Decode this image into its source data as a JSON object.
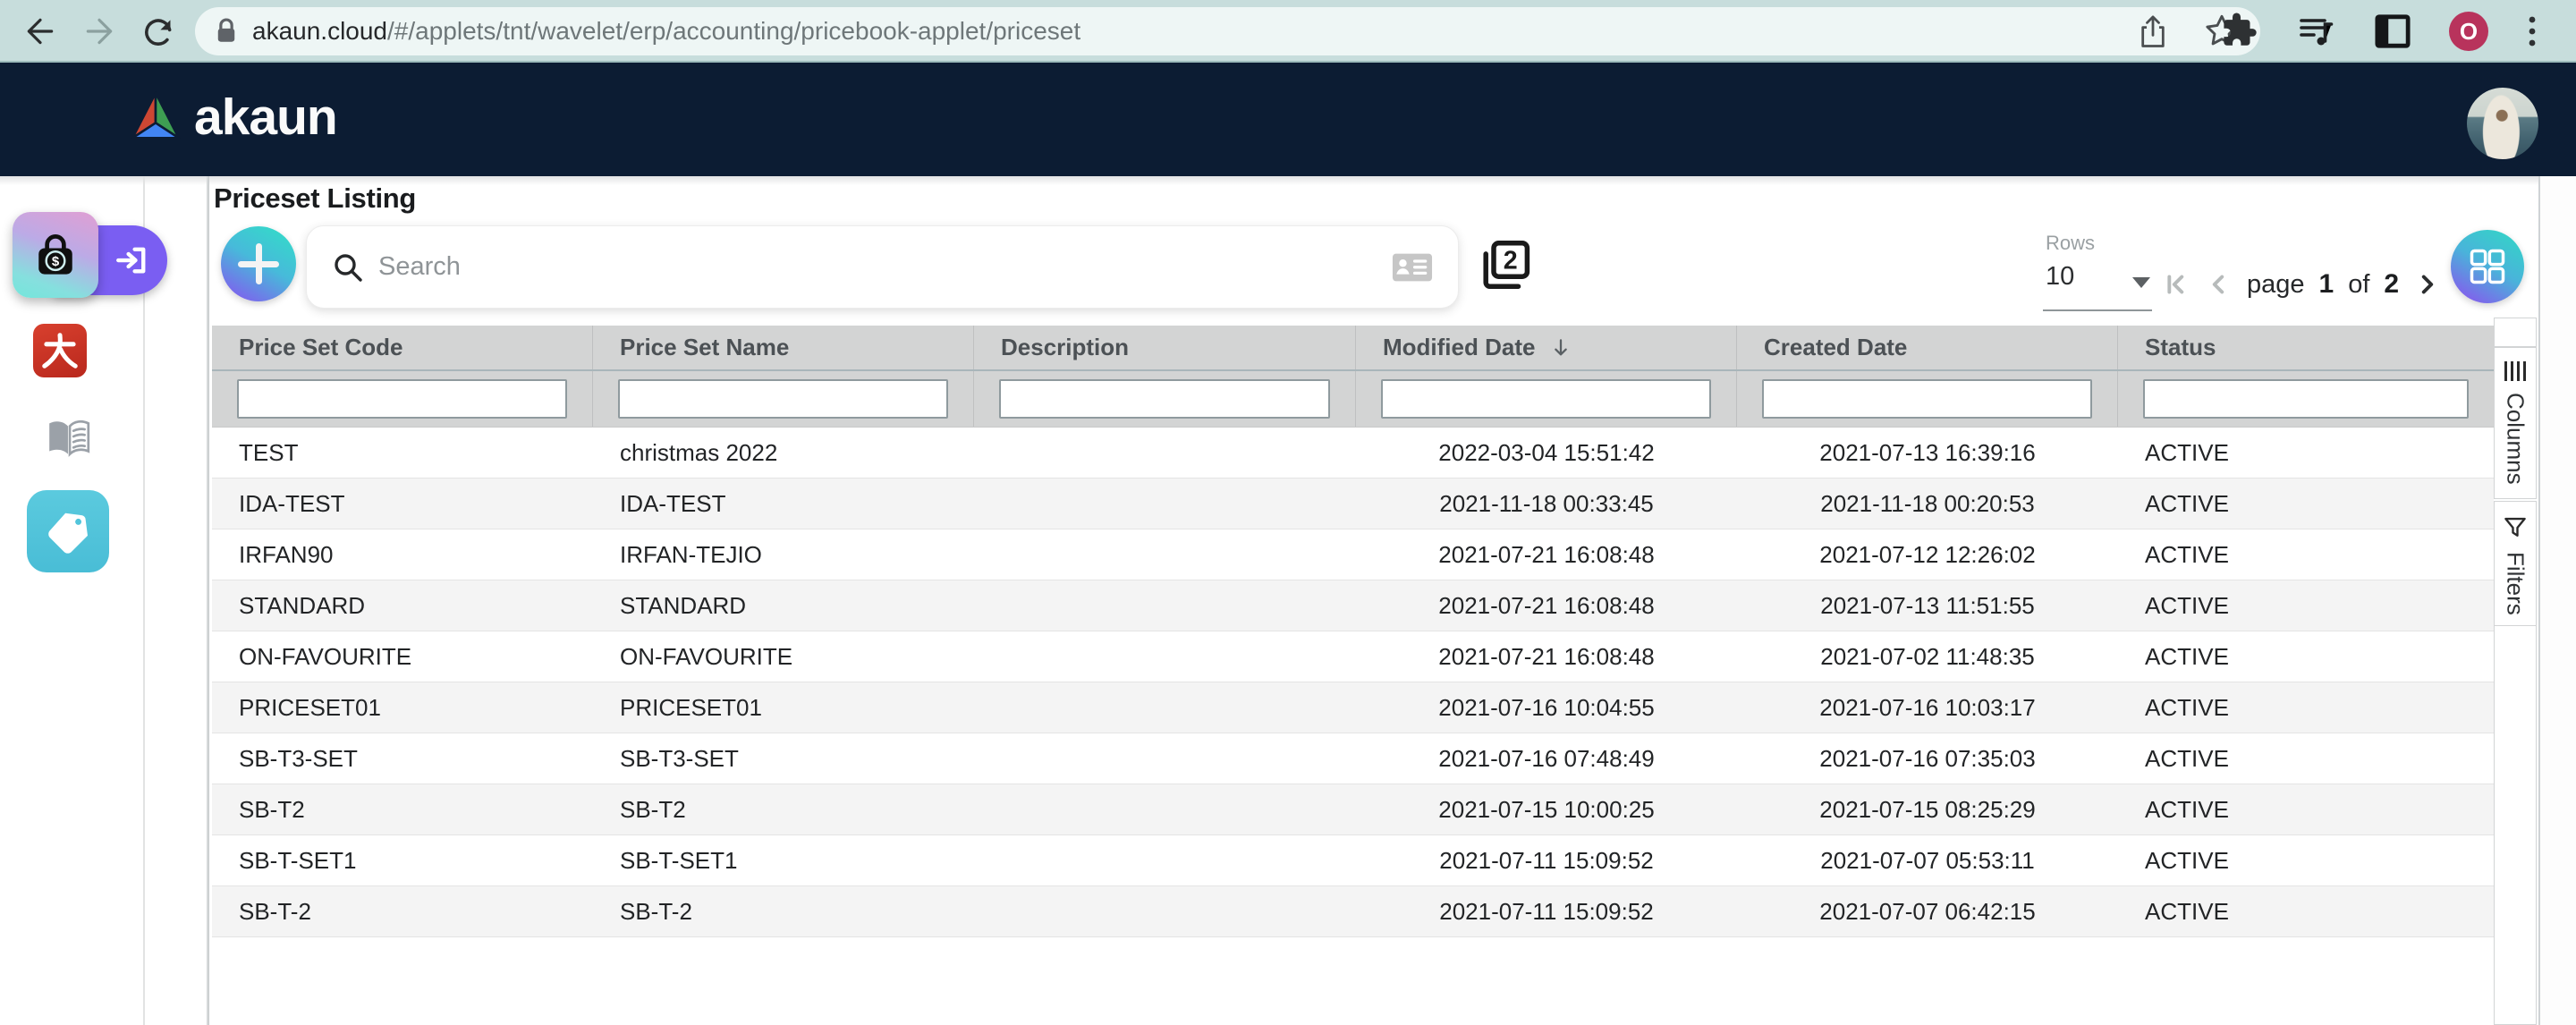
{
  "browser": {
    "url_host": "akaun.cloud",
    "url_path": "/#/applets/tnt/wavelet/erp/accounting/pricebook-applet/priceset",
    "profile_initial": "O"
  },
  "header": {
    "logo_text": "akaun"
  },
  "page": {
    "title": "Priceset Listing"
  },
  "toolbar": {
    "search_placeholder": "Search",
    "duplicate_count": "2"
  },
  "pagination": {
    "rows_label": "Rows",
    "rows_value": "10",
    "page_label": "page",
    "current_page": "1",
    "of_label": "of",
    "total_pages": "2"
  },
  "right_rail": {
    "columns_label": "Columns",
    "filters_label": "Filters"
  },
  "table": {
    "columns": [
      {
        "key": "code",
        "label": "Price Set Code",
        "sorted": false
      },
      {
        "key": "name",
        "label": "Price Set Name",
        "sorted": false
      },
      {
        "key": "description",
        "label": "Description",
        "sorted": false
      },
      {
        "key": "modified",
        "label": "Modified Date",
        "sorted": true
      },
      {
        "key": "created",
        "label": "Created Date",
        "sorted": false
      },
      {
        "key": "status",
        "label": "Status",
        "sorted": false
      }
    ],
    "rows": [
      {
        "code": "TEST",
        "name": "christmas 2022",
        "description": "",
        "modified": "2022-03-04 15:51:42",
        "created": "2021-07-13 16:39:16",
        "status": "ACTIVE"
      },
      {
        "code": "IDA-TEST",
        "name": "IDA-TEST",
        "description": "",
        "modified": "2021-11-18 00:33:45",
        "created": "2021-11-18 00:20:53",
        "status": "ACTIVE"
      },
      {
        "code": "IRFAN90",
        "name": "IRFAN-TEJIO",
        "description": "",
        "modified": "2021-07-21 16:08:48",
        "created": "2021-07-12 12:26:02",
        "status": "ACTIVE"
      },
      {
        "code": "STANDARD",
        "name": "STANDARD",
        "description": "",
        "modified": "2021-07-21 16:08:48",
        "created": "2021-07-13 11:51:55",
        "status": "ACTIVE"
      },
      {
        "code": "ON-FAVOURITE",
        "name": "ON-FAVOURITE",
        "description": "",
        "modified": "2021-07-21 16:08:48",
        "created": "2021-07-02 11:48:35",
        "status": "ACTIVE"
      },
      {
        "code": "PRICESET01",
        "name": "PRICESET01",
        "description": "",
        "modified": "2021-07-16 10:04:55",
        "created": "2021-07-16 10:03:17",
        "status": "ACTIVE"
      },
      {
        "code": "SB-T3-SET",
        "name": "SB-T3-SET",
        "description": "",
        "modified": "2021-07-16 07:48:49",
        "created": "2021-07-16 07:35:03",
        "status": "ACTIVE"
      },
      {
        "code": "SB-T2",
        "name": "SB-T2",
        "description": "",
        "modified": "2021-07-15 10:00:25",
        "created": "2021-07-15 08:25:29",
        "status": "ACTIVE"
      },
      {
        "code": "SB-T-SET1",
        "name": "SB-T-SET1",
        "description": "",
        "modified": "2021-07-11 15:09:52",
        "created": "2021-07-07 05:53:11",
        "status": "ACTIVE"
      },
      {
        "code": "SB-T-2",
        "name": "SB-T-2",
        "description": "",
        "modified": "2021-07-11 15:09:52",
        "created": "2021-07-07 06:42:15",
        "status": "ACTIVE"
      }
    ]
  },
  "icons": {
    "browser": [
      "back-arrow",
      "forward-arrow",
      "reload",
      "lock",
      "share",
      "bookmark-star",
      "extensions-puzzle",
      "playlist-music",
      "side-panel",
      "kebab-menu"
    ],
    "app": [
      "logo-triangle",
      "bag-dollar",
      "login-arrow",
      "dai-character",
      "open-book",
      "price-tag",
      "plus",
      "magnifier",
      "contact-card",
      "duplicate-2",
      "dropdown-caret",
      "first-page",
      "prev-page",
      "next-page",
      "last-page",
      "grid-dashboard",
      "sort-desc-arrow",
      "columns-bars",
      "filter-funnel"
    ]
  },
  "colors": {
    "toolbar_bg": "#c7dddc",
    "header_bg": "#0c1c33",
    "accent_gradient_start": "#33dcc8",
    "accent_gradient_end": "#8458ef",
    "active_flyout_purple": "#7a5ef2",
    "red_applet": "#cd3226",
    "teal_applet": "#52c5db",
    "profile_badge": "#b8335c",
    "table_header_bg": "#d3d4d4",
    "row_alt_bg": "#f4f4f4"
  }
}
